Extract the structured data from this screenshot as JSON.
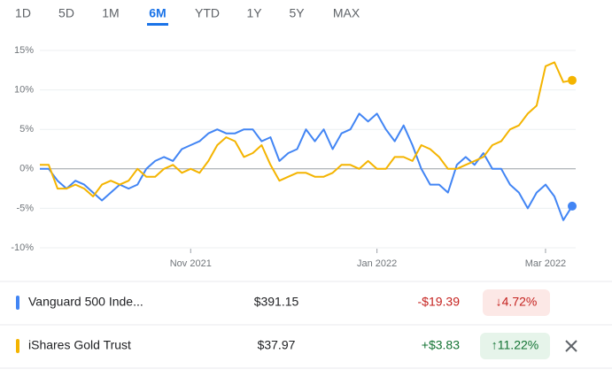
{
  "tabs": [
    "1D",
    "5D",
    "1M",
    "6M",
    "YTD",
    "1Y",
    "5Y",
    "MAX"
  ],
  "selected_tab": 3,
  "chart_data": {
    "type": "line",
    "categories": [
      null,
      null,
      null,
      null,
      null,
      null,
      null,
      null,
      null,
      null,
      null,
      null,
      null,
      null,
      null,
      null,
      null,
      "Nov 2021",
      null,
      null,
      null,
      null,
      null,
      null,
      null,
      null,
      null,
      null,
      null,
      null,
      null,
      null,
      null,
      null,
      null,
      null,
      null,
      null,
      "Jan 2022",
      null,
      null,
      null,
      null,
      null,
      null,
      null,
      null,
      null,
      null,
      null,
      null,
      null,
      null,
      null,
      null,
      null,
      null,
      "Mar 2022",
      null,
      null,
      null
    ],
    "ylim": [
      -10,
      15
    ],
    "yticks": [
      {
        "value": 15,
        "label": "15%"
      },
      {
        "value": 10,
        "label": "10%"
      },
      {
        "value": 5,
        "label": "5%"
      },
      {
        "value": 0,
        "label": "0%"
      },
      {
        "value": -5,
        "label": "-5%"
      },
      {
        "value": -10,
        "label": "-10%"
      }
    ],
    "grid": true,
    "series": [
      {
        "name": "Vanguard 500 Inde...",
        "color": "#4285f4",
        "price": "$391.15",
        "change": "-$19.39",
        "change_pct": "↓4.72%",
        "direction": "down",
        "values": [
          0,
          0,
          -1.5,
          -2.5,
          -1.5,
          -2,
          -3,
          -4,
          -3,
          -2,
          -2.5,
          -2,
          0,
          1,
          1.5,
          1,
          2.5,
          3,
          3.5,
          4.5,
          5,
          4.5,
          4.5,
          5,
          5,
          3.5,
          4,
          1,
          2,
          2.5,
          5,
          3.5,
          5,
          2.5,
          4.5,
          5,
          7,
          6,
          7,
          5,
          3.5,
          5.5,
          3,
          0,
          -2,
          -2,
          -3,
          0.5,
          1.5,
          0.5,
          2,
          0,
          0,
          -2,
          -3,
          -5,
          -3,
          -2,
          -3.5,
          -6.5,
          -4.72
        ]
      },
      {
        "name": "iShares Gold Trust",
        "color": "#f4b400",
        "price": "$37.97",
        "change": "+$3.83",
        "change_pct": "↑11.22%",
        "direction": "up",
        "values": [
          0.5,
          0.5,
          -2.5,
          -2.5,
          -2,
          -2.5,
          -3.5,
          -2,
          -1.5,
          -2,
          -1.5,
          0,
          -1,
          -1,
          0,
          0.5,
          -0.5,
          0,
          -0.5,
          1,
          3,
          4,
          3.5,
          1.5,
          2,
          3,
          0.5,
          -1.5,
          -1,
          -0.5,
          -0.5,
          -1,
          -1,
          -0.5,
          0.5,
          0.5,
          0,
          1,
          0,
          0,
          1.5,
          1.5,
          1,
          3,
          2.5,
          1.5,
          0,
          0,
          0.5,
          1,
          1.5,
          3,
          3.5,
          5,
          5.5,
          7,
          8,
          13,
          13.5,
          11,
          11.22
        ]
      }
    ]
  }
}
